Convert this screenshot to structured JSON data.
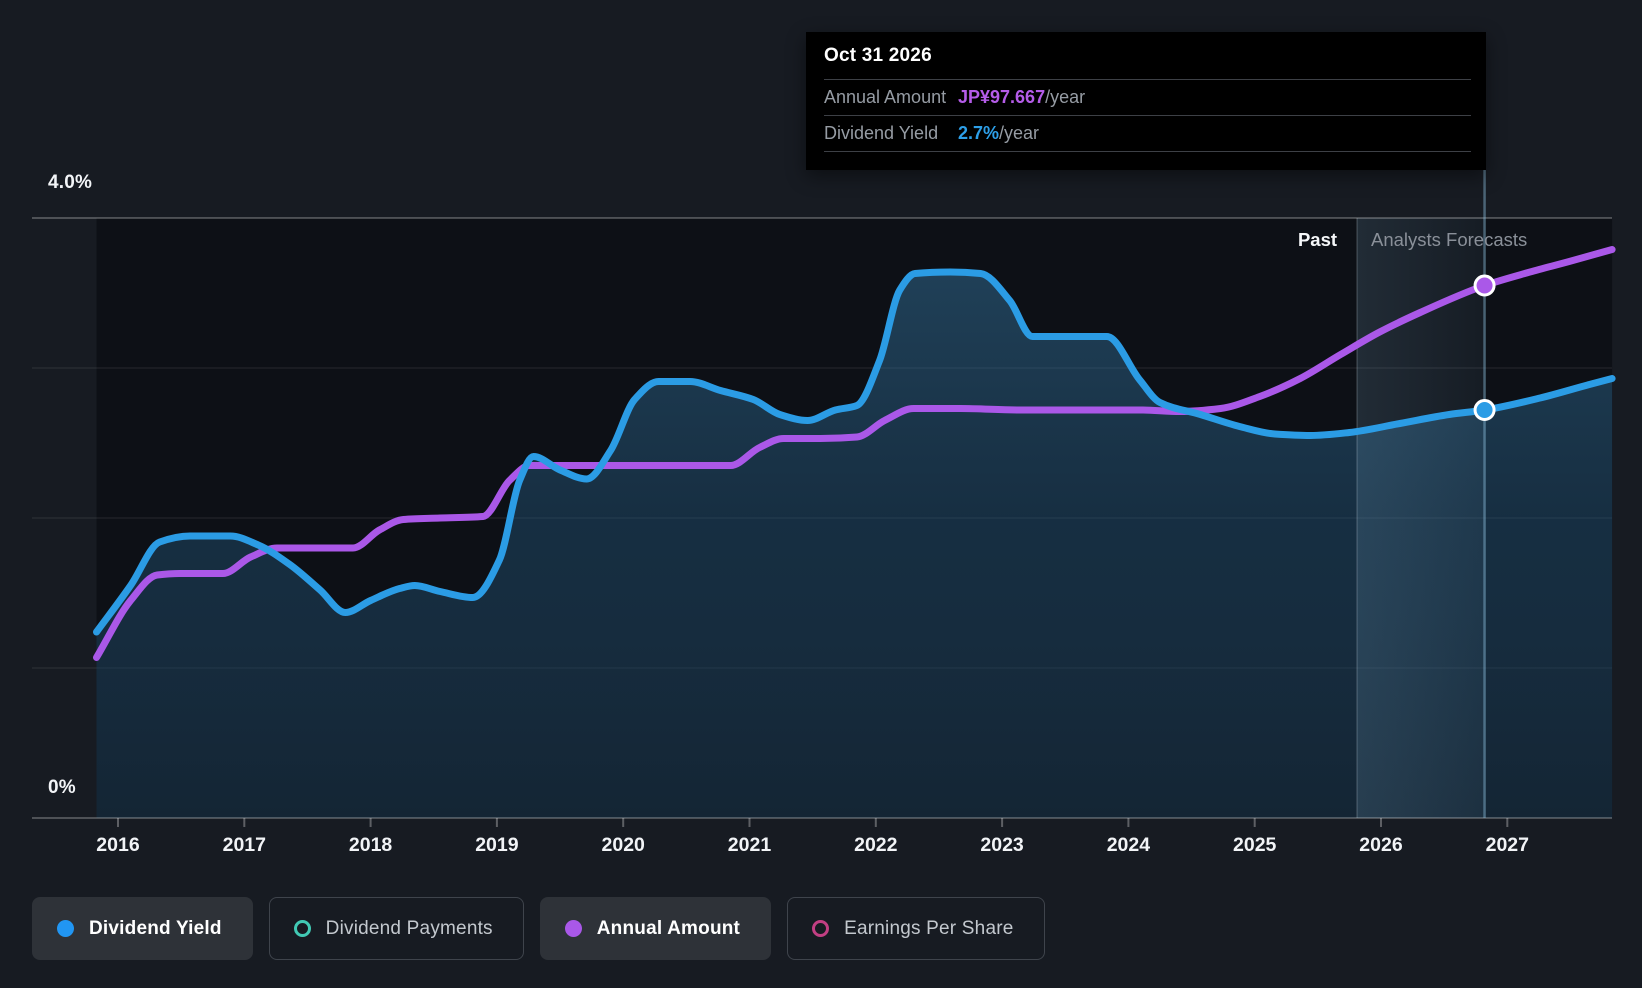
{
  "page": {
    "background": "#171b22"
  },
  "tooltip": {
    "date": "Oct 31 2026",
    "rows": [
      {
        "label": "Annual Amount",
        "value": "JP¥97.667",
        "suffix": "/year",
        "color": "#b45ce8"
      },
      {
        "label": "Dividend Yield",
        "value": "2.7%",
        "suffix": "/year",
        "color": "#2d9fe8"
      }
    ]
  },
  "annotations": {
    "past_label": "Past",
    "forecast_label": "Analysts Forecasts"
  },
  "y_axis": {
    "top_label": "4.0%",
    "bottom_label": "0%",
    "gridline_values": [
      4,
      3,
      2,
      1,
      0
    ]
  },
  "chart_data": {
    "type": "line",
    "ylabel": "Dividend Yield (%)",
    "ylim": [
      0,
      4
    ],
    "x_ticks": [
      "2016",
      "2017",
      "2018",
      "2019",
      "2020",
      "2021",
      "2022",
      "2023",
      "2024",
      "2025",
      "2026",
      "2027"
    ],
    "x_range": [
      2015.83,
      2027.83
    ],
    "grid": "horizontal-only",
    "legend_position": "bottom",
    "forecast_band": {
      "start_x": 2025.81,
      "end_x": 2026.82
    },
    "crosshair_x": 2026.82,
    "hover_point": {
      "date": "Oct 31 2026",
      "annual_amount_jpy_per_year": 97.667,
      "dividend_yield_pct_per_year": 2.7
    },
    "series": [
      {
        "name": "Dividend Yield",
        "color": "#2b9ce5",
        "area_fill": true,
        "unit": "percent",
        "points": [
          [
            2015.83,
            1.24
          ],
          [
            2016.1,
            1.55
          ],
          [
            2016.33,
            1.84
          ],
          [
            2016.57,
            1.88
          ],
          [
            2016.89,
            1.88
          ],
          [
            2017.11,
            1.82
          ],
          [
            2017.36,
            1.69
          ],
          [
            2017.6,
            1.52
          ],
          [
            2017.8,
            1.37
          ],
          [
            2018.0,
            1.45
          ],
          [
            2018.23,
            1.53
          ],
          [
            2018.35,
            1.55
          ],
          [
            2018.55,
            1.51
          ],
          [
            2018.81,
            1.47
          ],
          [
            2019.02,
            1.72
          ],
          [
            2019.18,
            2.25
          ],
          [
            2019.29,
            2.41
          ],
          [
            2019.5,
            2.32
          ],
          [
            2019.71,
            2.26
          ],
          [
            2019.9,
            2.45
          ],
          [
            2020.09,
            2.79
          ],
          [
            2020.28,
            2.91
          ],
          [
            2020.53,
            2.91
          ],
          [
            2020.77,
            2.85
          ],
          [
            2021.03,
            2.79
          ],
          [
            2021.24,
            2.69
          ],
          [
            2021.46,
            2.65
          ],
          [
            2021.68,
            2.72
          ],
          [
            2021.85,
            2.75
          ],
          [
            2022.03,
            3.05
          ],
          [
            2022.19,
            3.52
          ],
          [
            2022.31,
            3.63
          ],
          [
            2022.59,
            3.64
          ],
          [
            2022.83,
            3.63
          ],
          [
            2023.06,
            3.45
          ],
          [
            2023.24,
            3.21
          ],
          [
            2023.54,
            3.21
          ],
          [
            2023.83,
            3.21
          ],
          [
            2024.09,
            2.92
          ],
          [
            2024.25,
            2.77
          ],
          [
            2024.57,
            2.69
          ],
          [
            2024.88,
            2.61
          ],
          [
            2025.16,
            2.56
          ],
          [
            2025.44,
            2.55
          ],
          [
            2025.75,
            2.57
          ],
          [
            2026.15,
            2.63
          ],
          [
            2026.54,
            2.69
          ],
          [
            2026.82,
            2.72
          ],
          [
            2027.26,
            2.8
          ],
          [
            2027.65,
            2.89
          ],
          [
            2027.83,
            2.93
          ]
        ]
      },
      {
        "name": "Annual Amount",
        "color": "#aa58e8",
        "area_fill": false,
        "unit": "percent-equivalent position (JP¥ on hidden axis)",
        "points": [
          [
            2015.83,
            1.07
          ],
          [
            2016.1,
            1.45
          ],
          [
            2016.31,
            1.62
          ],
          [
            2016.49,
            1.63
          ],
          [
            2016.83,
            1.63
          ],
          [
            2017.05,
            1.74
          ],
          [
            2017.26,
            1.8
          ],
          [
            2017.52,
            1.8
          ],
          [
            2017.86,
            1.8
          ],
          [
            2018.07,
            1.92
          ],
          [
            2018.26,
            1.99
          ],
          [
            2018.55,
            2.0
          ],
          [
            2018.89,
            2.01
          ],
          [
            2019.1,
            2.25
          ],
          [
            2019.26,
            2.35
          ],
          [
            2019.58,
            2.35
          ],
          [
            2020.21,
            2.35
          ],
          [
            2020.85,
            2.35
          ],
          [
            2021.08,
            2.47
          ],
          [
            2021.27,
            2.53
          ],
          [
            2021.56,
            2.53
          ],
          [
            2021.85,
            2.54
          ],
          [
            2022.07,
            2.65
          ],
          [
            2022.3,
            2.73
          ],
          [
            2022.67,
            2.73
          ],
          [
            2023.14,
            2.72
          ],
          [
            2023.62,
            2.72
          ],
          [
            2024.09,
            2.72
          ],
          [
            2024.41,
            2.71
          ],
          [
            2024.73,
            2.73
          ],
          [
            2025.04,
            2.81
          ],
          [
            2025.36,
            2.93
          ],
          [
            2025.68,
            3.09
          ],
          [
            2025.99,
            3.24
          ],
          [
            2026.31,
            3.37
          ],
          [
            2026.82,
            3.55
          ],
          [
            2027.18,
            3.64
          ],
          [
            2027.49,
            3.71
          ],
          [
            2027.83,
            3.79
          ]
        ]
      }
    ],
    "markers": [
      {
        "series": "Annual Amount",
        "x": 2026.82,
        "y": 3.55,
        "color": "#aa58e8"
      },
      {
        "series": "Dividend Yield",
        "x": 2026.82,
        "y": 2.72,
        "color": "#2b9ce5"
      }
    ]
  },
  "legend": {
    "items": [
      {
        "label": "Dividend Yield",
        "color": "#2196f3",
        "swatch": "filled",
        "active": true
      },
      {
        "label": "Dividend Payments",
        "color": "#41c9b4",
        "swatch": "ring",
        "active": false
      },
      {
        "label": "Annual Amount",
        "color": "#a958e8",
        "swatch": "filled",
        "active": true
      },
      {
        "label": "Earnings Per Share",
        "color": "#c23f83",
        "swatch": "ring",
        "active": false
      }
    ]
  }
}
